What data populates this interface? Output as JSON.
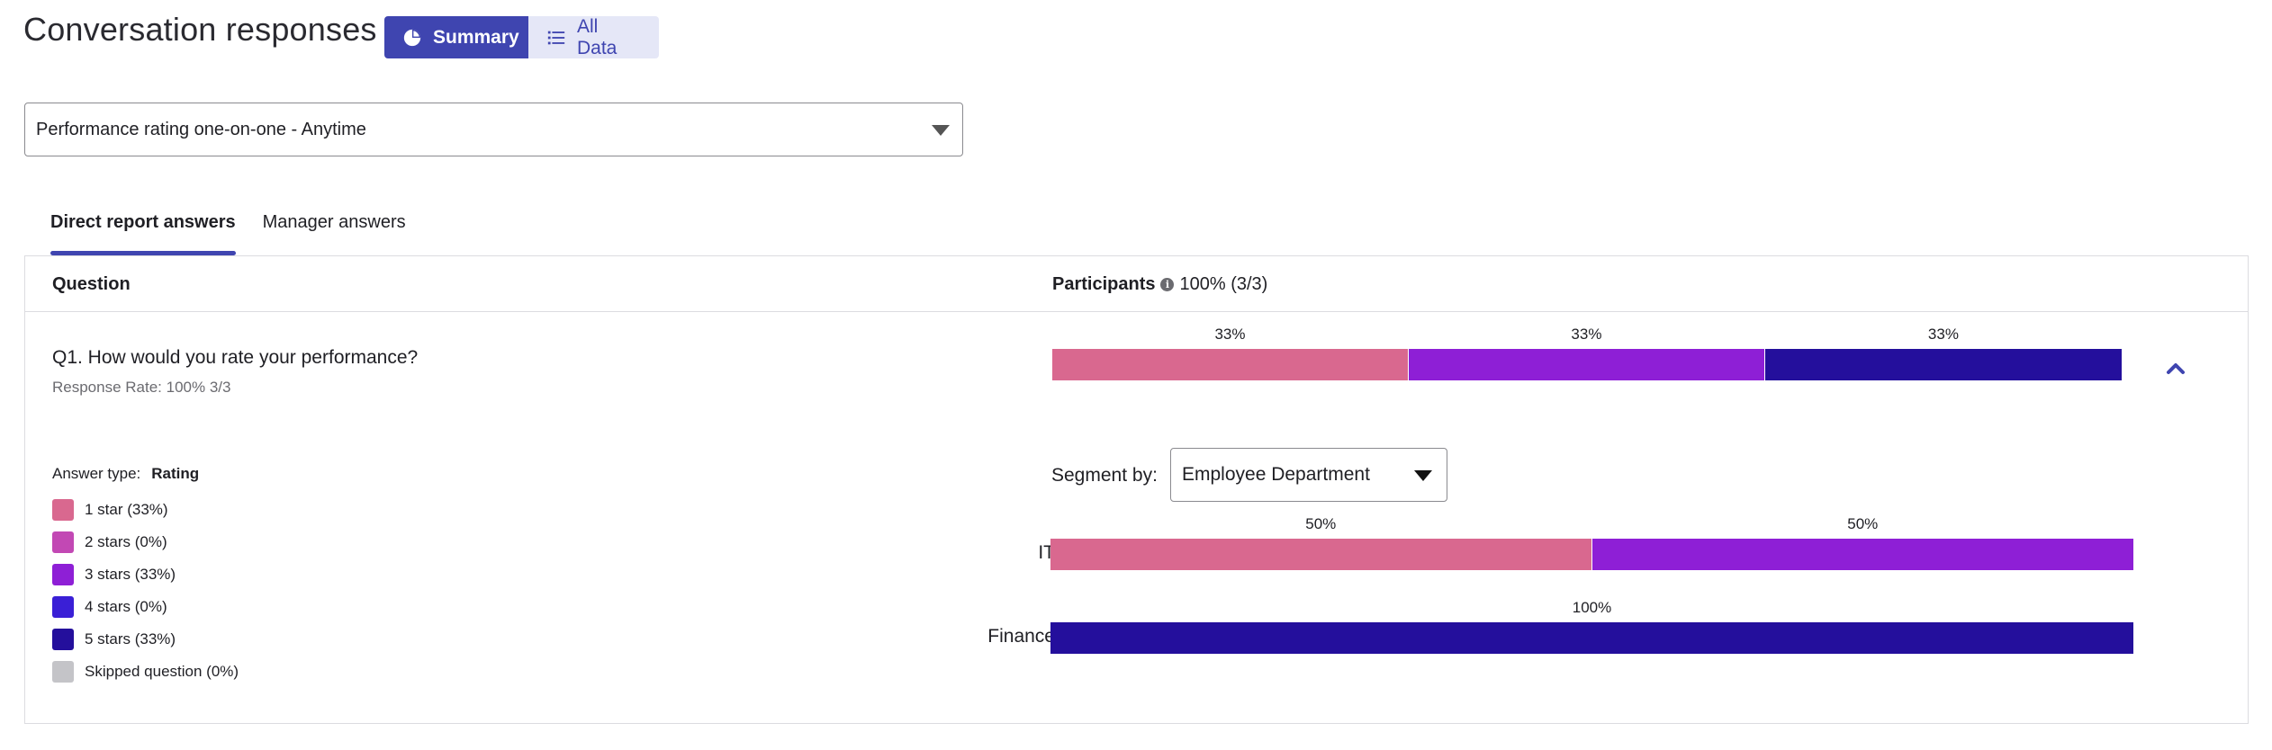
{
  "header": {
    "title": "Conversation responses",
    "toggle": {
      "summary_label": "Summary",
      "all_data_label": "All Data",
      "summary_icon": "pie-chart-icon",
      "all_data_icon": "list-icon"
    }
  },
  "conversation_select": {
    "value": "Performance rating one-on-one - Anytime"
  },
  "tabs": [
    {
      "label": "Direct report answers",
      "active": true
    },
    {
      "label": "Manager answers",
      "active": false
    }
  ],
  "table": {
    "col_question": "Question",
    "col_participants": "Participants",
    "participants_value": "100% (3/3)",
    "question": {
      "text": "Q1. How would you rate your performance?",
      "response_rate": "Response Rate: 100% 3/3",
      "answer_type_label": "Answer type:",
      "answer_type_value": "Rating",
      "overall_bar": [
        {
          "label": "33%",
          "fraction": 0.3333,
          "color": "#d9688f"
        },
        {
          "label": "33%",
          "fraction": 0.3333,
          "color": "#8e1fd6"
        },
        {
          "label": "33%",
          "fraction": 0.3334,
          "color": "#240f9c"
        }
      ],
      "legend": [
        {
          "label": "1 star (33%)",
          "color": "#d9688f"
        },
        {
          "label": "2 stars (0%)",
          "color": "#c248b4"
        },
        {
          "label": "3 stars (33%)",
          "color": "#8e1fd6"
        },
        {
          "label": "4 stars (0%)",
          "color": "#3a1fd6"
        },
        {
          "label": "5 stars (33%)",
          "color": "#240f9c"
        },
        {
          "label": "Skipped question (0%)",
          "color": "#c4c4c8"
        }
      ],
      "segment": {
        "label": "Segment by:",
        "value": "Employee Department",
        "rows": [
          {
            "name": "IT",
            "bar": [
              {
                "label": "50%",
                "fraction": 0.5,
                "color": "#d9688f"
              },
              {
                "label": "50%",
                "fraction": 0.5,
                "color": "#8e1fd6"
              }
            ]
          },
          {
            "name": "Finance",
            "bar": [
              {
                "label": "100%",
                "fraction": 1.0,
                "color": "#240f9c"
              }
            ]
          }
        ]
      }
    }
  }
}
